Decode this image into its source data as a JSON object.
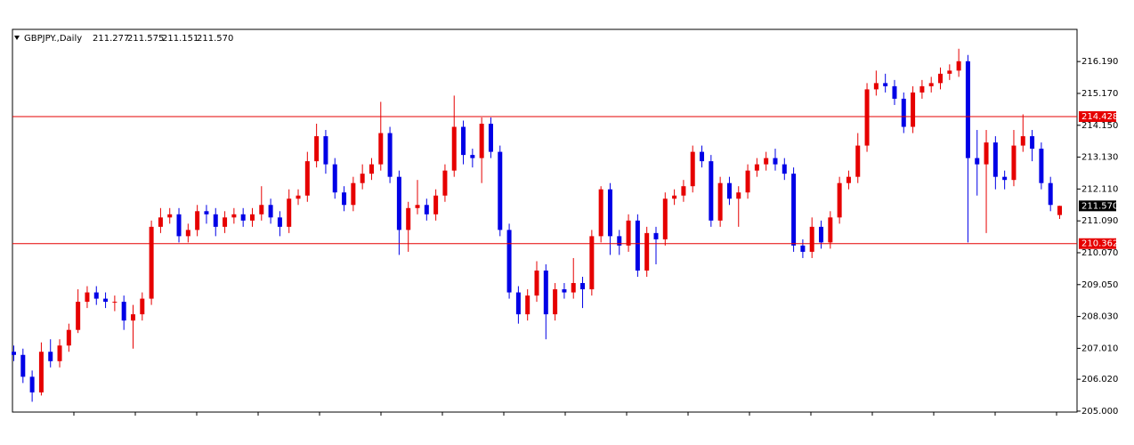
{
  "chart_data": {
    "type": "candlestick",
    "symbol": "GBPJPY.,Daily",
    "header_values": [
      "211.277",
      "211.575",
      "211.151",
      "211.570"
    ],
    "up_color": "#e60000",
    "down_color": "#0000e6",
    "ylim": [
      204.97,
      217.22
    ],
    "yticks": [
      {
        "value": 205,
        "label": "205.000"
      },
      {
        "value": 206.02,
        "label": "206.020"
      },
      {
        "value": 207.01,
        "label": "207.010"
      },
      {
        "value": 208.03,
        "label": "208.030"
      },
      {
        "value": 209.05,
        "label": "209.050"
      },
      {
        "value": 210.07,
        "label": "210.070"
      },
      {
        "value": 211.09,
        "label": "211.090"
      },
      {
        "value": 212.11,
        "label": "212.110"
      },
      {
        "value": 213.13,
        "label": "213.130"
      },
      {
        "value": 214.15,
        "label": "214.150"
      },
      {
        "value": 215.17,
        "label": "215.170"
      },
      {
        "value": 216.19,
        "label": "216.190"
      }
    ],
    "hlines": [
      {
        "value": 214.428,
        "label": "214.428",
        "color": "#e60000"
      },
      {
        "value": 210.362,
        "label": "210.362",
        "color": "#e60000"
      }
    ],
    "current_price": {
      "value": 211.57,
      "label": "211.570",
      "color": "#000000"
    },
    "candles": [
      [
        206.9,
        207.1,
        206.6,
        206.8
      ],
      [
        206.8,
        207.0,
        205.9,
        206.1
      ],
      [
        206.1,
        206.3,
        205.3,
        205.6
      ],
      [
        205.6,
        207.2,
        205.5,
        206.9
      ],
      [
        206.9,
        207.3,
        206.4,
        206.6
      ],
      [
        206.6,
        207.3,
        206.4,
        207.1
      ],
      [
        207.1,
        207.8,
        206.9,
        207.6
      ],
      [
        207.6,
        208.9,
        207.5,
        208.5
      ],
      [
        208.5,
        209.0,
        208.3,
        208.8
      ],
      [
        208.8,
        209.0,
        208.4,
        208.6
      ],
      [
        208.6,
        208.8,
        208.3,
        208.5
      ],
      [
        208.5,
        208.7,
        208.2,
        208.5
      ],
      [
        208.5,
        208.7,
        207.6,
        207.9
      ],
      [
        207.9,
        208.4,
        207.0,
        208.1
      ],
      [
        208.1,
        208.8,
        207.9,
        208.6
      ],
      [
        208.6,
        211.1,
        208.4,
        210.9
      ],
      [
        210.9,
        211.5,
        210.7,
        211.2
      ],
      [
        211.2,
        211.5,
        211.0,
        211.3
      ],
      [
        211.3,
        211.5,
        210.4,
        210.6
      ],
      [
        210.6,
        211.0,
        210.4,
        210.8
      ],
      [
        210.8,
        211.6,
        210.6,
        211.4
      ],
      [
        211.4,
        211.6,
        211.0,
        211.3
      ],
      [
        211.3,
        211.5,
        210.6,
        210.9
      ],
      [
        210.9,
        211.4,
        210.7,
        211.2
      ],
      [
        211.2,
        211.5,
        211.0,
        211.3
      ],
      [
        211.3,
        211.5,
        210.9,
        211.1
      ],
      [
        211.1,
        211.5,
        210.9,
        211.3
      ],
      [
        211.3,
        212.2,
        211.1,
        211.6
      ],
      [
        211.6,
        211.8,
        211.0,
        211.2
      ],
      [
        211.2,
        211.4,
        210.6,
        210.9
      ],
      [
        210.9,
        212.1,
        210.7,
        211.8
      ],
      [
        211.8,
        212.1,
        211.6,
        211.9
      ],
      [
        211.9,
        213.3,
        211.7,
        213.0
      ],
      [
        213.0,
        214.2,
        212.8,
        213.8
      ],
      [
        213.8,
        214.0,
        212.6,
        212.9
      ],
      [
        212.9,
        213.1,
        211.8,
        212.0
      ],
      [
        212.0,
        212.2,
        211.4,
        211.6
      ],
      [
        211.6,
        212.5,
        211.4,
        212.3
      ],
      [
        212.3,
        212.9,
        212.1,
        212.6
      ],
      [
        212.6,
        213.1,
        212.4,
        212.9
      ],
      [
        212.9,
        214.9,
        212.7,
        213.9
      ],
      [
        213.9,
        214.1,
        212.3,
        212.5
      ],
      [
        212.5,
        212.7,
        210.0,
        210.8
      ],
      [
        210.8,
        211.7,
        210.1,
        211.5
      ],
      [
        211.5,
        212.4,
        211.3,
        211.6
      ],
      [
        211.6,
        211.8,
        211.1,
        211.3
      ],
      [
        211.3,
        212.1,
        211.1,
        211.9
      ],
      [
        211.9,
        212.9,
        211.7,
        212.7
      ],
      [
        212.7,
        215.1,
        212.5,
        214.1
      ],
      [
        214.1,
        214.3,
        212.9,
        213.2
      ],
      [
        213.2,
        213.4,
        212.8,
        213.1
      ],
      [
        213.1,
        214.4,
        212.3,
        214.2
      ],
      [
        214.2,
        214.4,
        213.1,
        213.3
      ],
      [
        213.3,
        213.5,
        210.6,
        210.8
      ],
      [
        210.8,
        211.0,
        208.6,
        208.8
      ],
      [
        208.8,
        209.0,
        207.8,
        208.1
      ],
      [
        208.1,
        208.9,
        207.9,
        208.7
      ],
      [
        208.7,
        209.8,
        208.5,
        209.5
      ],
      [
        209.5,
        209.7,
        207.3,
        208.1
      ],
      [
        208.1,
        209.1,
        207.9,
        208.9
      ],
      [
        208.9,
        209.1,
        208.6,
        208.8
      ],
      [
        208.8,
        209.9,
        208.6,
        209.1
      ],
      [
        209.1,
        209.3,
        208.3,
        208.9
      ],
      [
        208.9,
        210.8,
        208.7,
        210.6
      ],
      [
        210.6,
        212.2,
        210.4,
        212.1
      ],
      [
        212.1,
        212.3,
        210.0,
        210.6
      ],
      [
        210.6,
        210.8,
        210.0,
        210.3
      ],
      [
        210.3,
        211.3,
        210.1,
        211.1
      ],
      [
        211.1,
        211.3,
        209.3,
        209.5
      ],
      [
        209.5,
        210.9,
        209.3,
        210.7
      ],
      [
        210.7,
        210.9,
        209.7,
        210.5
      ],
      [
        210.5,
        212.0,
        210.3,
        211.8
      ],
      [
        211.8,
        212.1,
        211.6,
        211.9
      ],
      [
        211.9,
        212.4,
        211.7,
        212.2
      ],
      [
        212.2,
        213.5,
        212.0,
        213.3
      ],
      [
        213.3,
        213.5,
        212.8,
        213.0
      ],
      [
        213.0,
        213.2,
        210.9,
        211.1
      ],
      [
        211.1,
        212.5,
        210.9,
        212.3
      ],
      [
        212.3,
        212.5,
        211.6,
        211.8
      ],
      [
        211.8,
        212.2,
        210.9,
        212.0
      ],
      [
        212.0,
        212.9,
        211.8,
        212.7
      ],
      [
        212.7,
        213.1,
        212.5,
        212.9
      ],
      [
        212.9,
        213.3,
        212.7,
        213.1
      ],
      [
        213.1,
        213.4,
        212.7,
        212.9
      ],
      [
        212.9,
        213.1,
        212.4,
        212.6
      ],
      [
        212.6,
        212.8,
        210.1,
        210.3
      ],
      [
        210.3,
        210.5,
        209.9,
        210.1
      ],
      [
        210.1,
        211.2,
        209.9,
        210.9
      ],
      [
        210.9,
        211.1,
        210.2,
        210.4
      ],
      [
        210.4,
        211.4,
        210.2,
        211.2
      ],
      [
        211.2,
        212.5,
        211.0,
        212.3
      ],
      [
        212.3,
        212.7,
        212.1,
        212.5
      ],
      [
        212.5,
        213.9,
        212.3,
        213.5
      ],
      [
        213.5,
        215.5,
        213.3,
        215.3
      ],
      [
        215.3,
        215.9,
        215.1,
        215.5
      ],
      [
        215.5,
        215.8,
        215.2,
        215.4
      ],
      [
        215.4,
        215.6,
        214.8,
        215.0
      ],
      [
        215.0,
        215.2,
        213.9,
        214.1
      ],
      [
        214.1,
        215.4,
        213.9,
        215.2
      ],
      [
        215.2,
        215.6,
        215.0,
        215.4
      ],
      [
        215.4,
        215.7,
        215.2,
        215.5
      ],
      [
        215.5,
        216.0,
        215.3,
        215.8
      ],
      [
        215.8,
        216.1,
        215.6,
        215.9
      ],
      [
        215.9,
        216.6,
        215.7,
        216.2
      ],
      [
        216.2,
        216.4,
        210.4,
        213.1
      ],
      [
        213.1,
        214.0,
        211.9,
        212.9
      ],
      [
        212.9,
        214.0,
        210.7,
        213.6
      ],
      [
        213.6,
        213.8,
        212.1,
        212.5
      ],
      [
        212.5,
        212.7,
        212.1,
        212.4
      ],
      [
        212.4,
        214.0,
        212.2,
        213.5
      ],
      [
        213.5,
        214.5,
        213.3,
        213.8
      ],
      [
        213.8,
        214.0,
        213.0,
        213.4
      ],
      [
        213.4,
        213.6,
        212.1,
        212.3
      ],
      [
        212.3,
        212.5,
        211.4,
        211.6
      ],
      [
        211.277,
        211.575,
        211.151,
        211.57
      ]
    ]
  }
}
